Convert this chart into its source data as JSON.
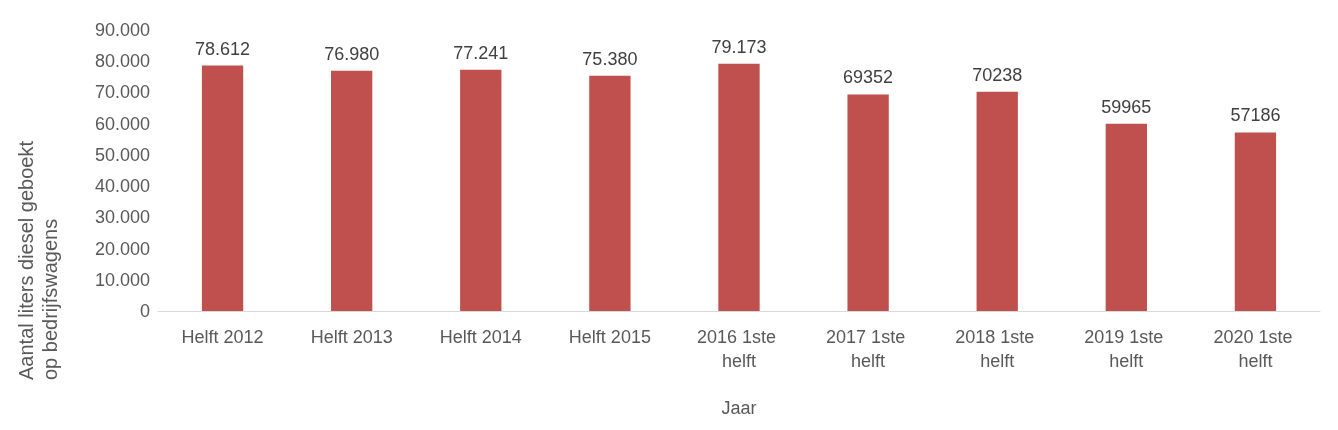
{
  "chart_data": {
    "type": "bar",
    "xlabel": "Jaar",
    "ylabel": "Aantal liters diesel geboekt op bedrijfswagens",
    "categories": [
      "Helft 2012",
      "Helft 2013",
      "Helft 2014",
      "Helft 2015",
      "2016 1ste helft",
      "2017 1ste helft",
      "2018 1ste helft",
      "2019 1ste helft",
      "2020 1ste helft"
    ],
    "values": [
      78612,
      76980,
      77241,
      75380,
      79173,
      69352,
      70238,
      59965,
      57186
    ],
    "value_labels": [
      "78.612",
      "76.980",
      "77.241",
      "75.380",
      "79.173",
      "69352",
      "70238",
      "59965",
      "57186"
    ],
    "color": "#c0504d",
    "ylim": [
      0,
      90000
    ],
    "yticks": [
      {
        "value": 0,
        "label": "0"
      },
      {
        "value": 10000,
        "label": "10.000"
      },
      {
        "value": 20000,
        "label": "20.000"
      },
      {
        "value": 30000,
        "label": "30.000"
      },
      {
        "value": 40000,
        "label": "40.000"
      },
      {
        "value": 50000,
        "label": "50.000"
      },
      {
        "value": 60000,
        "label": "60.000"
      },
      {
        "value": 70000,
        "label": "70.000"
      },
      {
        "value": 80000,
        "label": "80.000"
      },
      {
        "value": 90000,
        "label": "90.000"
      }
    ],
    "grid": false
  }
}
